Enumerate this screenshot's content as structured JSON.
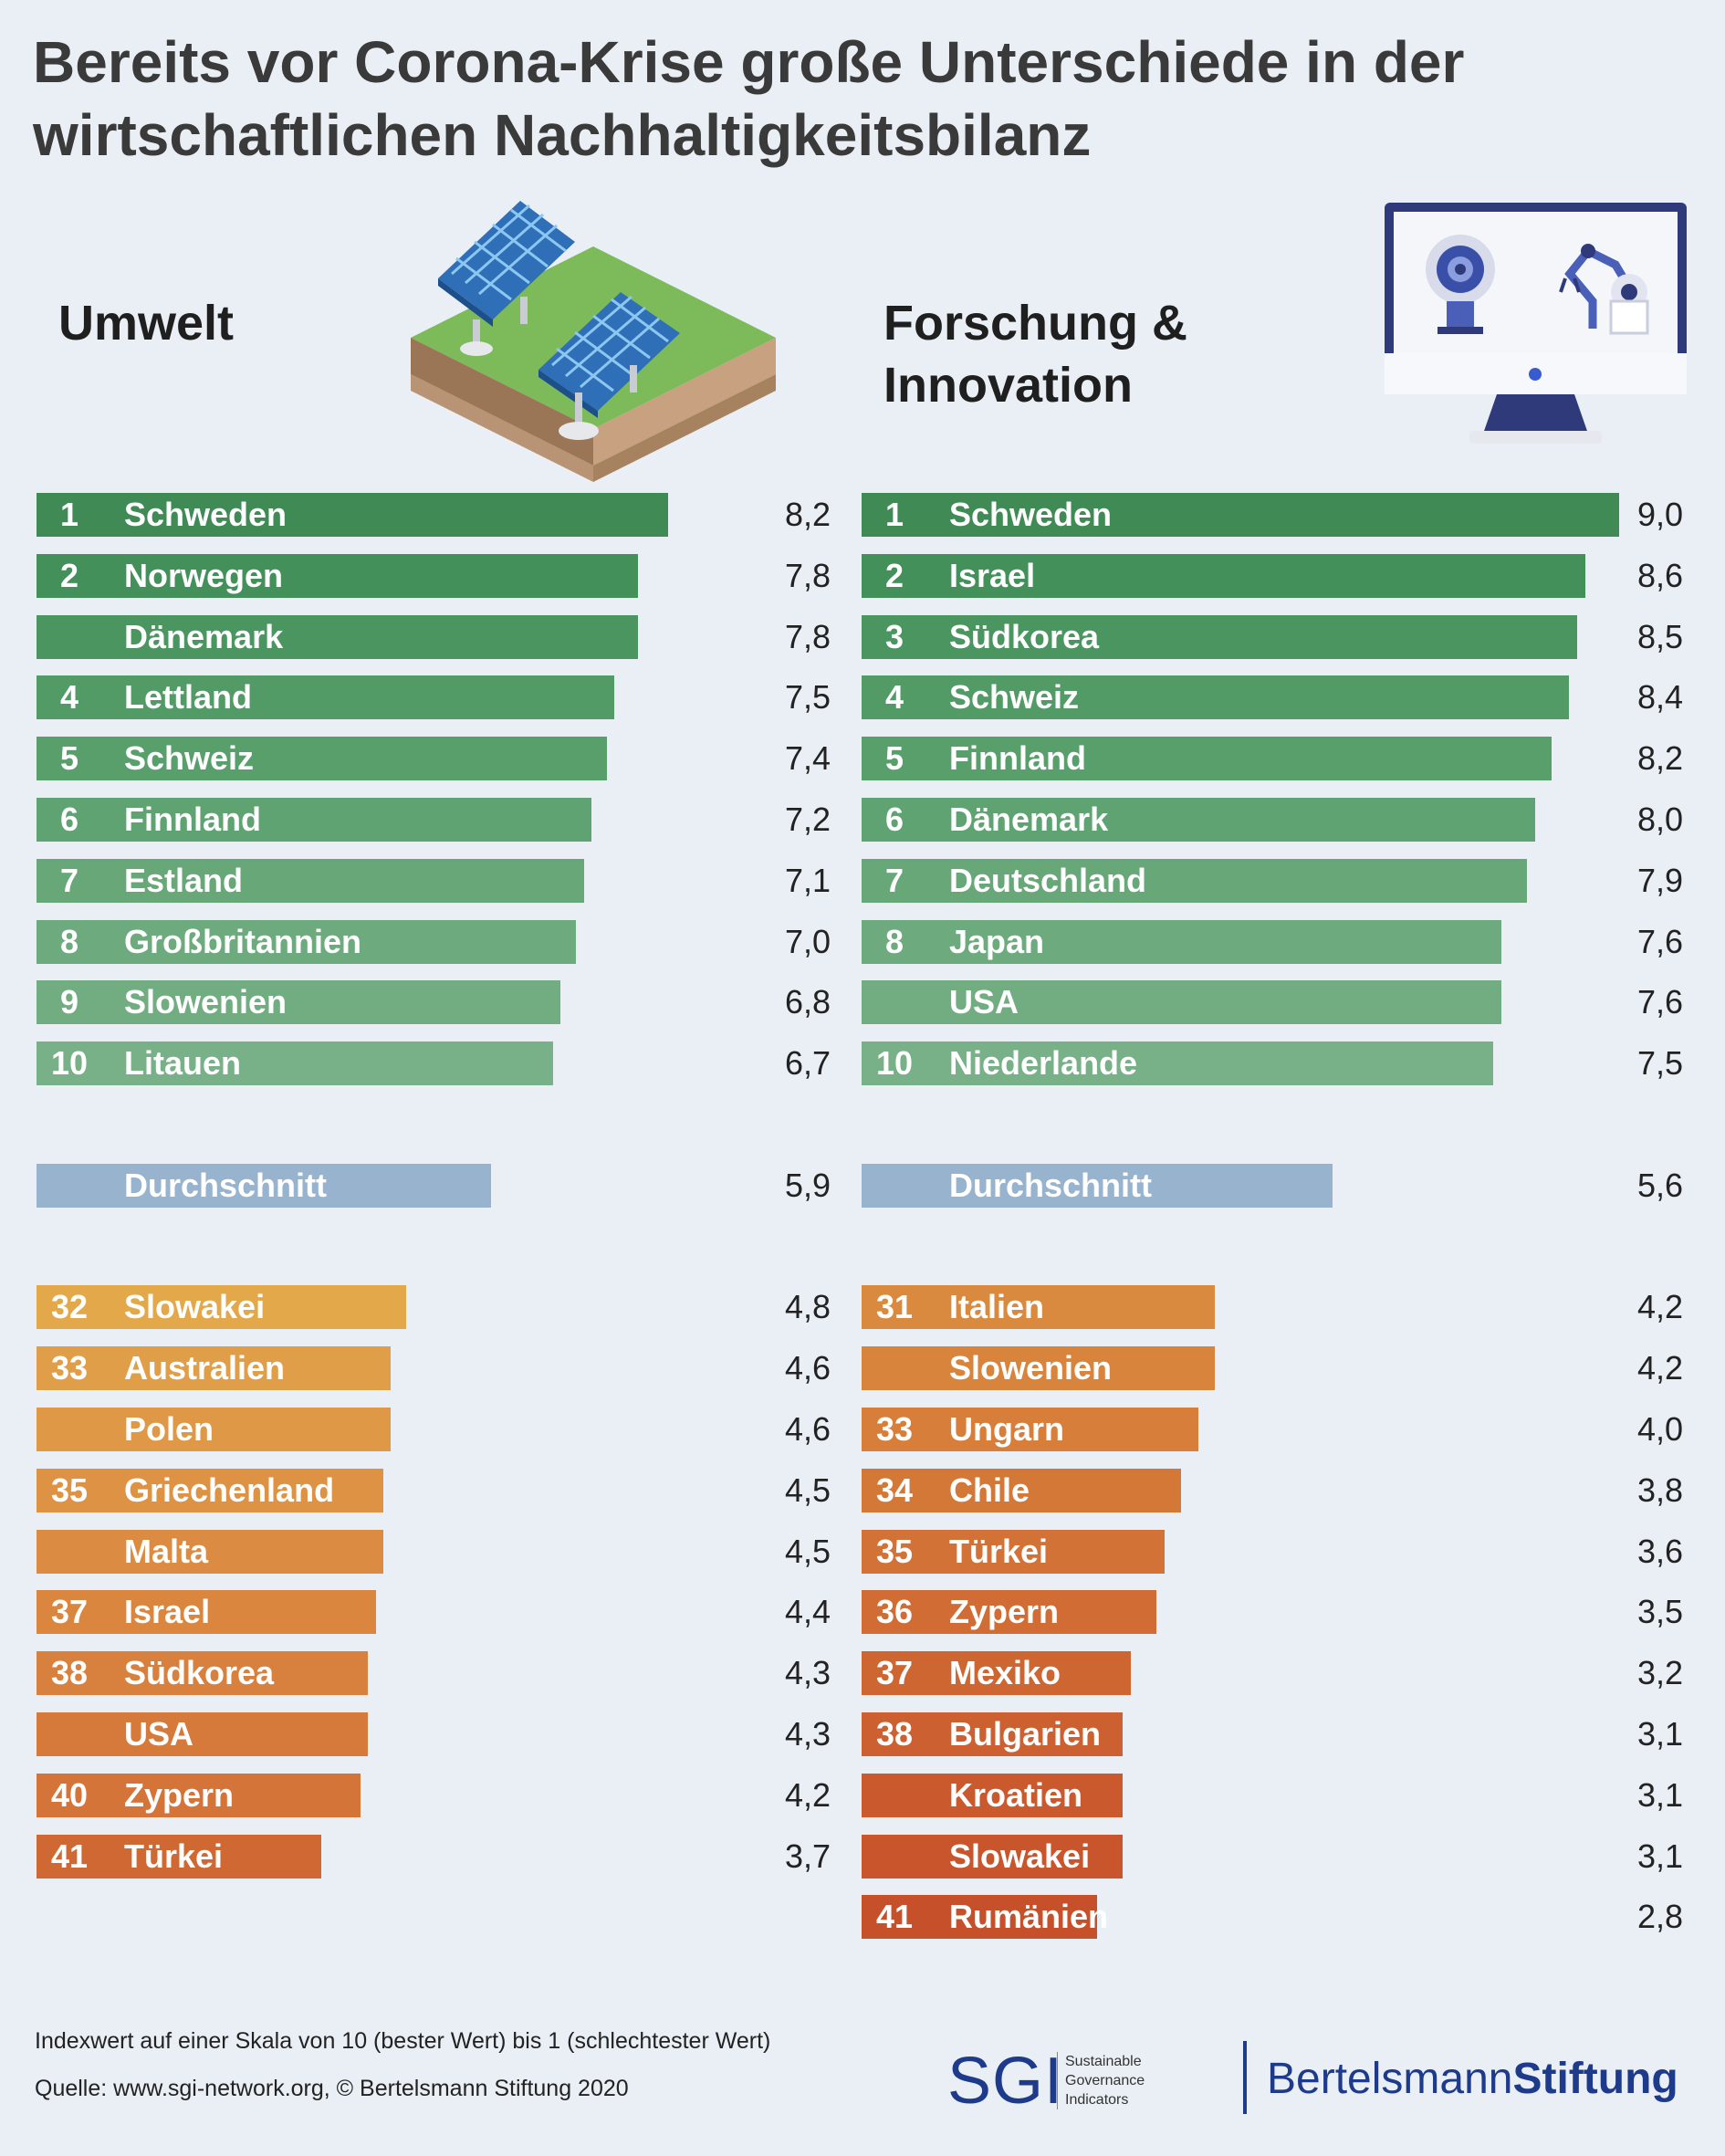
{
  "title": "Bereits vor Corona-Krise große Unterschiede in der wirtschaftlichen Nachhaltigkeitsbilanz",
  "colors": {
    "background": "#e9eff5",
    "brand": "#1e3a8a",
    "average": "#97b3cd"
  },
  "chart_data": [
    {
      "type": "bar",
      "orientation": "horizontal",
      "title": "Umwelt",
      "xlim": [
        0,
        9.0
      ],
      "rows": [
        {
          "rank": "1",
          "country": "Schweden",
          "value": 8.2,
          "label": "8,2",
          "group": "top",
          "color": "#3f8a55"
        },
        {
          "rank": "2",
          "country": "Norwegen",
          "value": 7.8,
          "label": "7,8",
          "group": "top",
          "color": "#44905a"
        },
        {
          "rank": "",
          "country": "Dänemark",
          "value": 7.8,
          "label": "7,8",
          "group": "top",
          "color": "#4a9560"
        },
        {
          "rank": "4",
          "country": "Lettland",
          "value": 7.5,
          "label": "7,5",
          "group": "top",
          "color": "#529a66"
        },
        {
          "rank": "5",
          "country": "Schweiz",
          "value": 7.4,
          "label": "7,4",
          "group": "top",
          "color": "#599f6c"
        },
        {
          "rank": "6",
          "country": "Finnland",
          "value": 7.2,
          "label": "7,2",
          "group": "top",
          "color": "#60a372"
        },
        {
          "rank": "7",
          "country": "Estland",
          "value": 7.1,
          "label": "7,1",
          "group": "top",
          "color": "#67a778"
        },
        {
          "rank": "8",
          "country": "Großbritannien",
          "value": 7.0,
          "label": "7,0",
          "group": "top",
          "color": "#6daa7d"
        },
        {
          "rank": "9",
          "country": "Slowenien",
          "value": 6.8,
          "label": "6,8",
          "group": "top",
          "color": "#72ad82"
        },
        {
          "rank": "10",
          "country": "Litauen",
          "value": 6.7,
          "label": "6,7",
          "group": "top",
          "color": "#78b087"
        },
        {
          "rank": "",
          "country": "Durchschnitt",
          "value": 5.9,
          "label": "5,9",
          "group": "average",
          "color": "#97b3cd"
        },
        {
          "rank": "32",
          "country": "Slowakei",
          "value": 4.8,
          "label": "4,8",
          "group": "bottom",
          "color": "#e2a84a"
        },
        {
          "rank": "33",
          "country": "Australien",
          "value": 4.6,
          "label": "4,6",
          "group": "bottom",
          "color": "#e09e48"
        },
        {
          "rank": "",
          "country": "Polen",
          "value": 4.6,
          "label": "4,6",
          "group": "bottom",
          "color": "#df9846"
        },
        {
          "rank": "35",
          "country": "Griechenland",
          "value": 4.5,
          "label": "4,5",
          "group": "bottom",
          "color": "#de9244"
        },
        {
          "rank": "",
          "country": "Malta",
          "value": 4.5,
          "label": "4,5",
          "group": "bottom",
          "color": "#dc8c42"
        },
        {
          "rank": "37",
          "country": "Israel",
          "value": 4.4,
          "label": "4,4",
          "group": "bottom",
          "color": "#da863f"
        },
        {
          "rank": "38",
          "country": "Südkorea",
          "value": 4.3,
          "label": "4,3",
          "group": "bottom",
          "color": "#d8803d"
        },
        {
          "rank": "",
          "country": "USA",
          "value": 4.3,
          "label": "4,3",
          "group": "bottom",
          "color": "#d67a3b"
        },
        {
          "rank": "40",
          "country": "Zypern",
          "value": 4.2,
          "label": "4,2",
          "group": "bottom",
          "color": "#d47439"
        },
        {
          "rank": "41",
          "country": "Türkei",
          "value": 3.7,
          "label": "3,7",
          "group": "bottom",
          "color": "#d06834"
        }
      ]
    },
    {
      "type": "bar",
      "orientation": "horizontal",
      "title": "Forschung & Innovation",
      "xlim": [
        0,
        9.0
      ],
      "rows": [
        {
          "rank": "1",
          "country": "Schweden",
          "value": 9.0,
          "label": "9,0",
          "group": "top",
          "color": "#3f8a55"
        },
        {
          "rank": "2",
          "country": "Israel",
          "value": 8.6,
          "label": "8,6",
          "group": "top",
          "color": "#44905a"
        },
        {
          "rank": "3",
          "country": "Südkorea",
          "value": 8.5,
          "label": "8,5",
          "group": "top",
          "color": "#4a9560"
        },
        {
          "rank": "4",
          "country": "Schweiz",
          "value": 8.4,
          "label": "8,4",
          "group": "top",
          "color": "#529a66"
        },
        {
          "rank": "5",
          "country": "Finnland",
          "value": 8.2,
          "label": "8,2",
          "group": "top",
          "color": "#599f6c"
        },
        {
          "rank": "6",
          "country": "Dänemark",
          "value": 8.0,
          "label": "8,0",
          "group": "top",
          "color": "#60a372"
        },
        {
          "rank": "7",
          "country": "Deutschland",
          "value": 7.9,
          "label": "7,9",
          "group": "top",
          "color": "#67a778"
        },
        {
          "rank": "8",
          "country": "Japan",
          "value": 7.6,
          "label": "7,6",
          "group": "top",
          "color": "#6daa7d"
        },
        {
          "rank": "",
          "country": "USA",
          "value": 7.6,
          "label": "7,6",
          "group": "top",
          "color": "#72ad82"
        },
        {
          "rank": "10",
          "country": "Niederlande",
          "value": 7.5,
          "label": "7,5",
          "group": "top",
          "color": "#78b087"
        },
        {
          "rank": "",
          "country": "Durchschnitt",
          "value": 5.6,
          "label": "5,6",
          "group": "average",
          "color": "#97b3cd"
        },
        {
          "rank": "31",
          "country": "Italien",
          "value": 4.2,
          "label": "4,2",
          "group": "bottom",
          "color": "#d98a3e"
        },
        {
          "rank": "",
          "country": "Slowenien",
          "value": 4.2,
          "label": "4,2",
          "group": "bottom",
          "color": "#d8843c"
        },
        {
          "rank": "33",
          "country": "Ungarn",
          "value": 4.0,
          "label": "4,0",
          "group": "bottom",
          "color": "#d67e3a"
        },
        {
          "rank": "34",
          "country": "Chile",
          "value": 3.8,
          "label": "3,8",
          "group": "bottom",
          "color": "#d47838"
        },
        {
          "rank": "35",
          "country": "Türkei",
          "value": 3.6,
          "label": "3,6",
          "group": "bottom",
          "color": "#d27236"
        },
        {
          "rank": "36",
          "country": "Zypern",
          "value": 3.5,
          "label": "3,5",
          "group": "bottom",
          "color": "#d06c34"
        },
        {
          "rank": "37",
          "country": "Mexiko",
          "value": 3.2,
          "label": "3,2",
          "group": "bottom",
          "color": "#ce6632"
        },
        {
          "rank": "38",
          "country": "Bulgarien",
          "value": 3.1,
          "label": "3,1",
          "group": "bottom",
          "color": "#cc6030"
        },
        {
          "rank": "",
          "country": "Kroatien",
          "value": 3.1,
          "label": "3,1",
          "group": "bottom",
          "color": "#ca5a2e"
        },
        {
          "rank": "",
          "country": "Slowakei",
          "value": 3.1,
          "label": "3,1",
          "group": "bottom",
          "color": "#c8552c"
        },
        {
          "rank": "41",
          "country": "Rumänien",
          "value": 2.8,
          "label": "2,8",
          "group": "bottom",
          "color": "#c5502a"
        }
      ]
    }
  ],
  "footer": {
    "note": "Indexwert auf einer Skala von 10 (bester Wert) bis 1 (schlechtester Wert)",
    "source": "Quelle: www.sgi-network.org, © Bertelsmann Stiftung 2020",
    "sgi_mark": "SGI",
    "sgi_line1": "Sustainable",
    "sgi_line2": "Governance",
    "sgi_line3": "Indicators",
    "bst_regular": "Bertelsmann",
    "bst_bold": "Stiftung"
  },
  "illustrations": {
    "left": "solar-panels-illustration",
    "right": "computer-robot-illustration"
  }
}
